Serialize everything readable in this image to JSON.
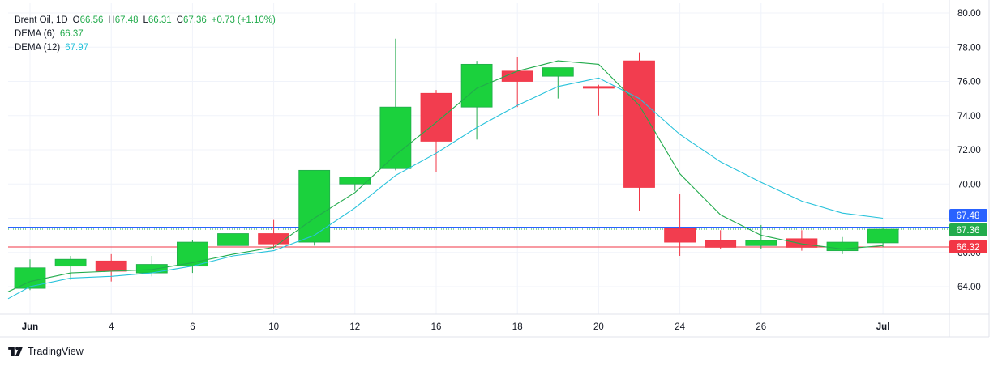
{
  "chart_data": {
    "type": "candlestick",
    "legend": {
      "symbol": "Brent Oil",
      "interval": "1D",
      "o_label": "O",
      "o_value": "66.56",
      "h_label": "H",
      "h_value": "67.48",
      "l_label": "L",
      "l_value": "66.31",
      "c_label": "C",
      "c_value": "67.36",
      "change": "+0.73",
      "change_pct": "(+1.10%)",
      "dema6_label": "DEMA (6)",
      "dema6_value": "66.37",
      "dema12_label": "DEMA (12)",
      "dema12_value": "67.97"
    },
    "y_ticks": [
      "80.00",
      "78.00",
      "76.00",
      "74.00",
      "72.00",
      "70.00",
      "68.00",
      "66.00",
      "64.00"
    ],
    "x_ticks": [
      "Jun",
      "4",
      "6",
      "10",
      "12",
      "16",
      "18",
      "20",
      "24",
      "26",
      "Jul"
    ],
    "ylim": [
      62.35,
      80.0
    ],
    "grid": true,
    "candles": [
      {
        "open": 63.9,
        "high": 65.6,
        "low": 63.8,
        "close": 65.1
      },
      {
        "open": 65.2,
        "high": 65.8,
        "low": 64.4,
        "close": 65.6
      },
      {
        "open": 65.5,
        "high": 65.9,
        "low": 64.3,
        "close": 64.9
      },
      {
        "open": 64.8,
        "high": 65.8,
        "low": 64.6,
        "close": 65.3
      },
      {
        "open": 65.2,
        "high": 66.7,
        "low": 64.8,
        "close": 66.6
      },
      {
        "open": 66.4,
        "high": 67.2,
        "low": 66.0,
        "close": 67.1
      },
      {
        "open": 67.1,
        "high": 67.9,
        "low": 66.2,
        "close": 66.5
      },
      {
        "open": 66.6,
        "high": 70.8,
        "low": 66.4,
        "close": 70.8
      },
      {
        "open": 70.0,
        "high": 70.4,
        "low": 69.6,
        "close": 70.4
      },
      {
        "open": 70.9,
        "high": 78.5,
        "low": 70.8,
        "close": 74.5
      },
      {
        "open": 75.3,
        "high": 75.5,
        "low": 70.7,
        "close": 72.5
      },
      {
        "open": 74.5,
        "high": 77.2,
        "low": 72.6,
        "close": 77.0
      },
      {
        "open": 76.6,
        "high": 77.4,
        "low": 74.5,
        "close": 76.0
      },
      {
        "open": 76.3,
        "high": 76.8,
        "low": 75.0,
        "close": 76.8
      },
      {
        "open": 75.7,
        "high": 75.8,
        "low": 74.0,
        "close": 75.6
      },
      {
        "open": 77.2,
        "high": 77.7,
        "low": 68.4,
        "close": 69.8
      },
      {
        "open": 67.4,
        "high": 69.4,
        "low": 65.8,
        "close": 66.6
      },
      {
        "open": 66.7,
        "high": 67.3,
        "low": 66.2,
        "close": 66.3
      },
      {
        "open": 66.4,
        "high": 67.6,
        "low": 66.2,
        "close": 66.7
      },
      {
        "open": 66.8,
        "high": 67.3,
        "low": 66.1,
        "close": 66.3
      },
      {
        "open": 66.1,
        "high": 66.9,
        "low": 65.9,
        "close": 66.6
      },
      {
        "open": 66.56,
        "high": 67.48,
        "low": 66.31,
        "close": 67.36
      }
    ],
    "series": [
      {
        "name": "DEMA (6)",
        "color": "#22ab4c",
        "values": [
          64.3,
          64.8,
          64.9,
          65.0,
          65.4,
          65.9,
          66.3,
          68.0,
          69.5,
          71.7,
          73.6,
          75.6,
          76.6,
          77.2,
          77.0,
          74.6,
          70.6,
          68.2,
          67.0,
          66.5,
          66.2,
          66.4
        ]
      },
      {
        "name": "DEMA (12)",
        "color": "#27c2db",
        "values": [
          64.0,
          64.5,
          64.6,
          64.8,
          65.2,
          65.8,
          66.1,
          67.0,
          68.6,
          70.5,
          71.8,
          73.3,
          74.6,
          75.7,
          76.2,
          75.0,
          72.9,
          71.3,
          70.1,
          69.0,
          68.3,
          68.0
        ]
      }
    ],
    "price_tags": [
      {
        "label": "67.48",
        "value": 67.48,
        "color": "#2962ff"
      },
      {
        "label": "67.36",
        "value": 67.36,
        "color": "#22ab4c"
      },
      {
        "label": "66.32",
        "value": 66.32,
        "color": "#f23645"
      }
    ],
    "up_color": "#22ab4c",
    "down_color": "#f23645",
    "up_fill": "#1bd13d",
    "down_fill": "#f23d4f"
  },
  "brand": {
    "name": "TradingView"
  }
}
